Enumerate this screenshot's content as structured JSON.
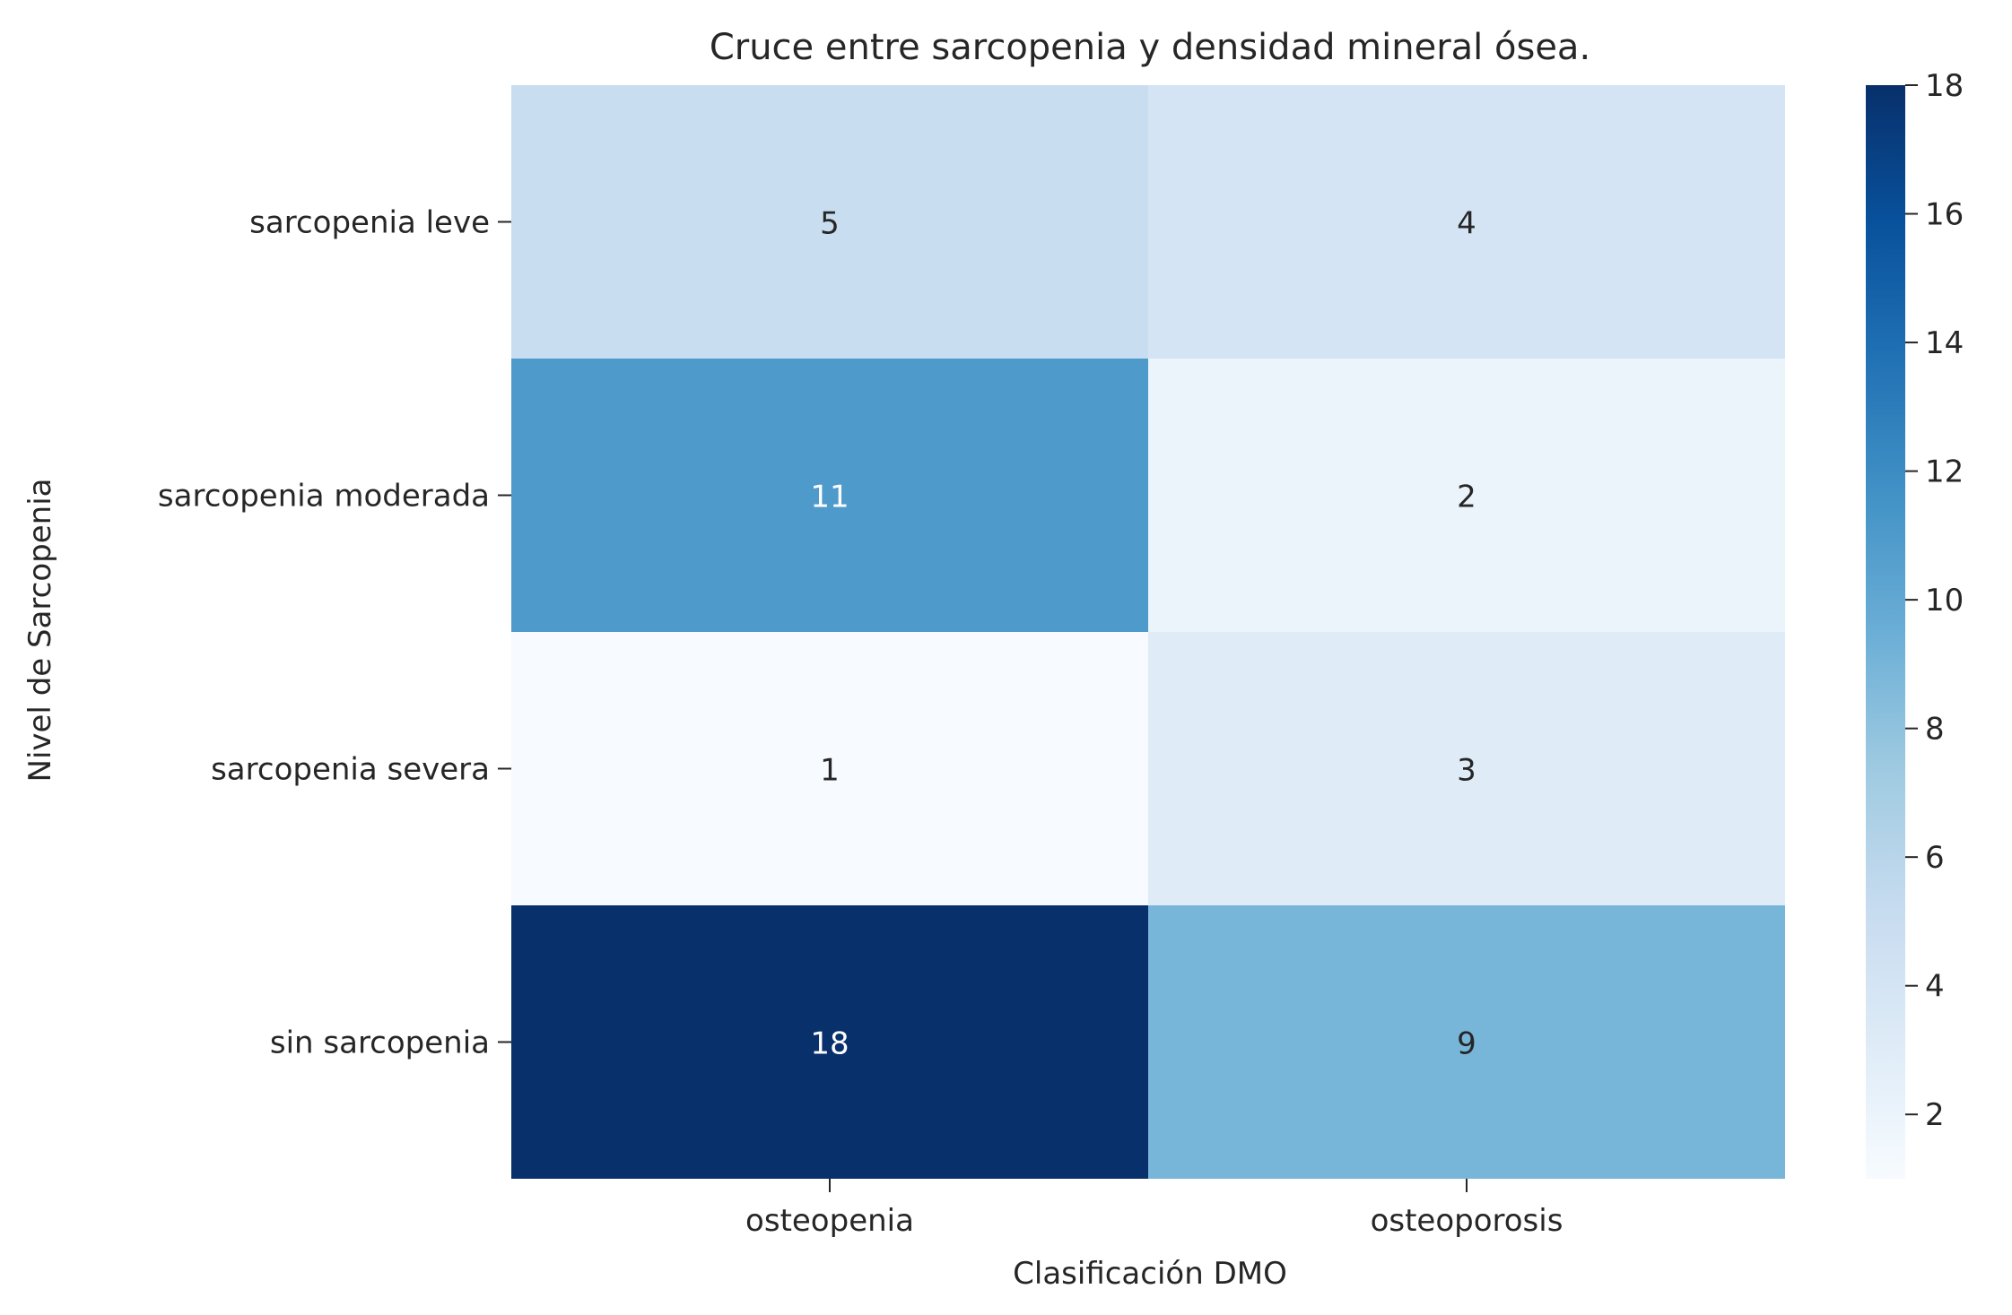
{
  "chart_data": {
    "type": "heatmap",
    "title": "Cruce entre sarcopenia y densidad mineral ósea.",
    "xlabel": "Clasificación DMO",
    "ylabel": "Nivel de Sarcopenia",
    "x_categories": [
      "osteopenia",
      "osteoporosis"
    ],
    "y_categories": [
      "sarcopenia leve",
      "sarcopenia moderada",
      "sarcopenia severa",
      "sin sarcopenia"
    ],
    "values": [
      [
        5,
        4
      ],
      [
        11,
        2
      ],
      [
        1,
        3
      ],
      [
        18,
        9
      ]
    ],
    "colorbar": {
      "min": 1,
      "max": 18,
      "ticks": [
        2,
        4,
        6,
        8,
        10,
        12,
        14,
        16,
        18
      ],
      "colormap": "Blues"
    }
  }
}
